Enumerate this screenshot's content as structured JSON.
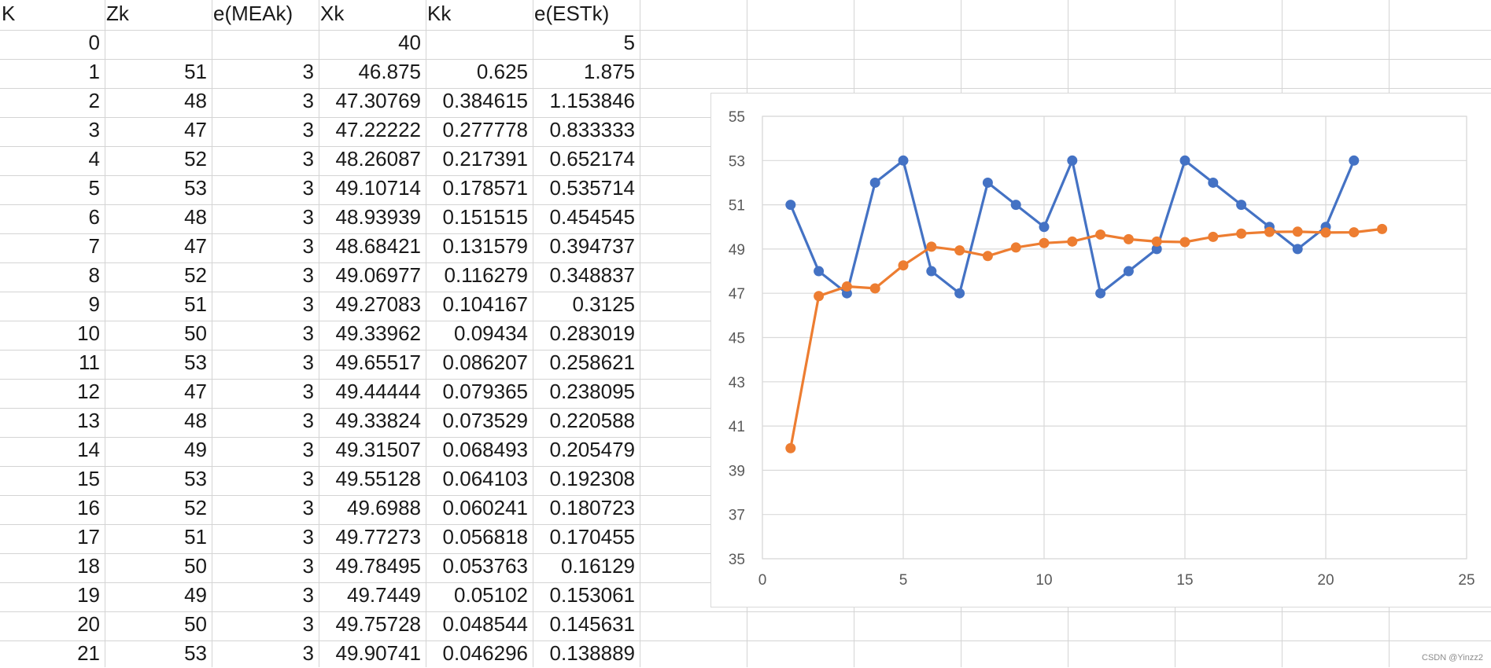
{
  "sheet": {
    "headers": [
      "K",
      "Zk",
      "e(MEAk)",
      "Xk",
      "Kk",
      "e(ESTk)"
    ],
    "rows": [
      [
        "0",
        "",
        "",
        "40",
        "",
        "5"
      ],
      [
        "1",
        "51",
        "3",
        "46.875",
        "0.625",
        "1.875"
      ],
      [
        "2",
        "48",
        "3",
        "47.30769",
        "0.384615",
        "1.153846"
      ],
      [
        "3",
        "47",
        "3",
        "47.22222",
        "0.277778",
        "0.833333"
      ],
      [
        "4",
        "52",
        "3",
        "48.26087",
        "0.217391",
        "0.652174"
      ],
      [
        "5",
        "53",
        "3",
        "49.10714",
        "0.178571",
        "0.535714"
      ],
      [
        "6",
        "48",
        "3",
        "48.93939",
        "0.151515",
        "0.454545"
      ],
      [
        "7",
        "47",
        "3",
        "48.68421",
        "0.131579",
        "0.394737"
      ],
      [
        "8",
        "52",
        "3",
        "49.06977",
        "0.116279",
        "0.348837"
      ],
      [
        "9",
        "51",
        "3",
        "49.27083",
        "0.104167",
        "0.3125"
      ],
      [
        "10",
        "50",
        "3",
        "49.33962",
        "0.09434",
        "0.283019"
      ],
      [
        "11",
        "53",
        "3",
        "49.65517",
        "0.086207",
        "0.258621"
      ],
      [
        "12",
        "47",
        "3",
        "49.44444",
        "0.079365",
        "0.238095"
      ],
      [
        "13",
        "48",
        "3",
        "49.33824",
        "0.073529",
        "0.220588"
      ],
      [
        "14",
        "49",
        "3",
        "49.31507",
        "0.068493",
        "0.205479"
      ],
      [
        "15",
        "53",
        "3",
        "49.55128",
        "0.064103",
        "0.192308"
      ],
      [
        "16",
        "52",
        "3",
        "49.6988",
        "0.060241",
        "0.180723"
      ],
      [
        "17",
        "51",
        "3",
        "49.77273",
        "0.056818",
        "0.170455"
      ],
      [
        "18",
        "50",
        "3",
        "49.78495",
        "0.053763",
        "0.16129"
      ],
      [
        "19",
        "49",
        "3",
        "49.7449",
        "0.05102",
        "0.153061"
      ],
      [
        "20",
        "50",
        "3",
        "49.75728",
        "0.048544",
        "0.145631"
      ],
      [
        "21",
        "53",
        "3",
        "49.90741",
        "0.046296",
        "0.138889"
      ]
    ]
  },
  "chart_data": {
    "type": "line",
    "title": "",
    "xlabel": "",
    "ylabel": "",
    "xlim": [
      0,
      25
    ],
    "ylim": [
      35,
      55
    ],
    "x_ticks": [
      0,
      5,
      10,
      15,
      20,
      25
    ],
    "y_ticks": [
      35,
      37,
      39,
      41,
      43,
      45,
      47,
      49,
      51,
      53,
      55
    ],
    "grid": true,
    "legend": "none",
    "series": [
      {
        "color": "#4472C4",
        "x": [
          1,
          2,
          3,
          4,
          5,
          6,
          7,
          8,
          9,
          10,
          11,
          12,
          13,
          14,
          15,
          16,
          17,
          18,
          19,
          20,
          21
        ],
        "y": [
          51,
          48,
          47,
          52,
          53,
          48,
          47,
          52,
          51,
          50,
          53,
          47,
          48,
          49,
          53,
          52,
          51,
          50,
          49,
          50,
          53
        ]
      },
      {
        "color": "#ED7D31",
        "x": [
          1,
          2,
          3,
          4,
          5,
          6,
          7,
          8,
          9,
          10,
          11,
          12,
          13,
          14,
          15,
          16,
          17,
          18,
          19,
          20,
          21,
          22
        ],
        "y": [
          40,
          46.875,
          47.30769,
          47.22222,
          48.26087,
          49.10714,
          48.93939,
          48.68421,
          49.06977,
          49.27083,
          49.33962,
          49.65517,
          49.44444,
          49.33824,
          49.31507,
          49.55128,
          49.6988,
          49.77273,
          49.78495,
          49.7449,
          49.75728,
          49.90741
        ]
      }
    ]
  },
  "watermark": "CSDN @Yinzz2"
}
